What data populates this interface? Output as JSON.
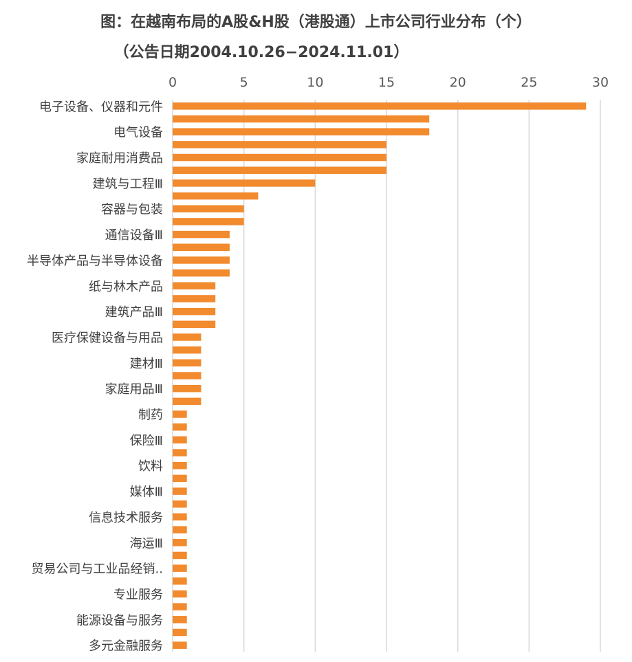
{
  "chart_data": {
    "type": "bar",
    "orientation": "horizontal",
    "title": "图：在越南布局的A股&H股（港股通）上市公司行业分布（个）",
    "subtitle": "（公告日期2004.10.26−2024.11.01）",
    "xlim": [
      0,
      30
    ],
    "xticks": [
      0,
      5,
      10,
      15,
      20,
      25,
      30
    ],
    "bar_color": "#F28A2E",
    "grid_color": "#D9D9D9",
    "visible_labels": [
      "电子设备、仪器和元件",
      "电气设备",
      "家庭耐用消费品",
      "建筑与工程Ⅲ",
      "容器与包装",
      "通信设备Ⅲ",
      "半导体产品与半导体设备",
      "纸与林木产品",
      "建筑产品Ⅲ",
      "医疗保健设备与用品",
      "建材Ⅲ",
      "家庭用品Ⅲ",
      "制药",
      "保险Ⅲ",
      "饮料",
      "媒体Ⅲ",
      "信息技术服务",
      "海运Ⅲ",
      "贸易公司与工业品经销..",
      "专业服务",
      "能源设备与服务",
      "多元金融服务"
    ],
    "values": [
      29,
      18,
      18,
      15,
      15,
      15,
      10,
      6,
      5,
      5,
      4,
      4,
      4,
      4,
      3,
      3,
      3,
      3,
      2,
      2,
      2,
      2,
      2,
      2,
      1,
      1,
      1,
      1,
      1,
      1,
      1,
      1,
      1,
      1,
      1,
      1,
      1,
      1,
      1,
      1,
      1,
      1,
      1
    ]
  }
}
